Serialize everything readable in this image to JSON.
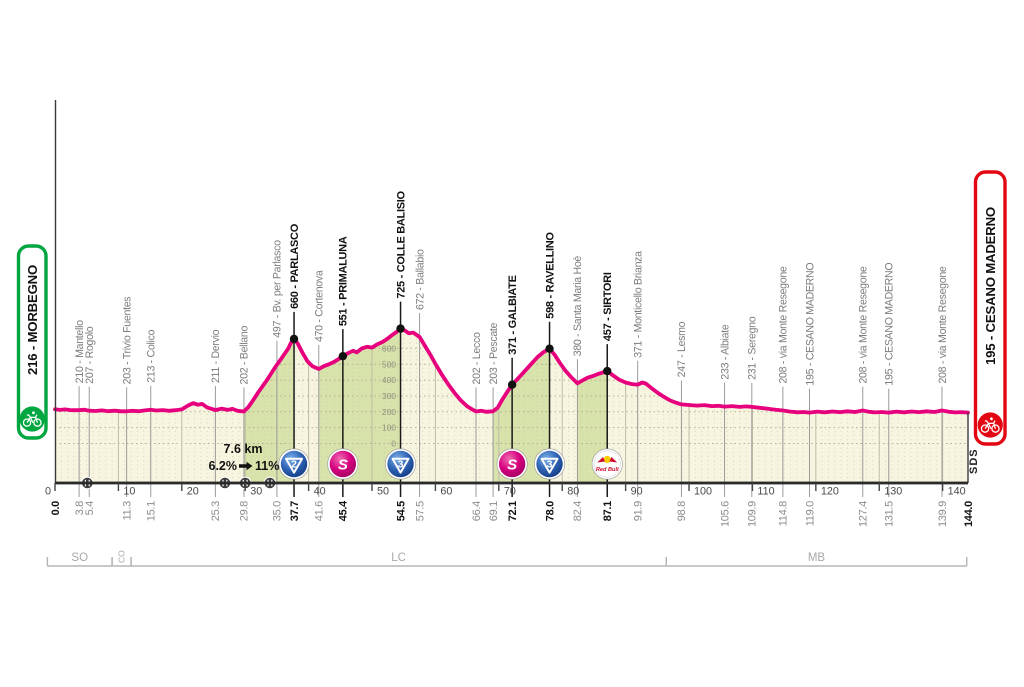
{
  "chart_data": {
    "type": "area",
    "x_unit": "km",
    "y_unit": "m",
    "x_range": [
      0,
      144
    ],
    "x_major_step": 10,
    "y_ticks": [
      0,
      100,
      200,
      300,
      400,
      500,
      600
    ],
    "total_distance_km": "144.0",
    "start": {
      "label": "216 - MORBEGNO"
    },
    "finish": {
      "label": "195 - CESANO MADERNO"
    },
    "watermark": "SDS",
    "climb_note": {
      "length": "7.6 km",
      "from_pct": "6.2%",
      "to_pct": "11%"
    },
    "provinces": [
      {
        "label": "SO",
        "from_km": -1.2,
        "to_km": 9.0,
        "rotated": false
      },
      {
        "label": "CO",
        "from_km": 9.0,
        "to_km": 12.0,
        "rotated": true
      },
      {
        "label": "LC",
        "from_km": 12.0,
        "to_km": 96.4,
        "rotated": false
      },
      {
        "label": "MB",
        "from_km": 96.4,
        "to_km": 143.8,
        "rotated": false
      }
    ],
    "tunnels_km": [
      5.1,
      26.8,
      30.0,
      33.9
    ],
    "green_segments": [
      [
        29.8,
        37.7
      ],
      [
        41.6,
        54.5
      ],
      [
        69.1,
        78.0
      ],
      [
        82.4,
        87.1
      ]
    ],
    "waypoints": [
      {
        "km": 0.0,
        "elev": 216,
        "name": "MORBEGNO",
        "emph": true,
        "icon": null,
        "role": "start"
      },
      {
        "km": 3.8,
        "elev": 210,
        "name": "Mantello",
        "emph": false,
        "icon": null
      },
      {
        "km": 5.4,
        "elev": 207,
        "name": "Rogolo",
        "emph": false,
        "icon": null
      },
      {
        "km": 11.3,
        "elev": 203,
        "name": "Trivio Fuentes",
        "emph": false,
        "icon": null
      },
      {
        "km": 15.1,
        "elev": 213,
        "name": "Colico",
        "emph": false,
        "icon": null
      },
      {
        "km": 25.3,
        "elev": 211,
        "name": "Dervio",
        "emph": false,
        "icon": null
      },
      {
        "km": 29.8,
        "elev": 202,
        "name": "Bellano",
        "emph": false,
        "icon": null
      },
      {
        "km": 35.0,
        "elev": 497,
        "name": "Bv. per Parlasco",
        "emph": false,
        "icon": null
      },
      {
        "km": 37.7,
        "elev": 660,
        "name": "PARLASCO",
        "emph": true,
        "icon": "cat2"
      },
      {
        "km": 41.6,
        "elev": 470,
        "name": "Cortenova",
        "emph": false,
        "icon": null
      },
      {
        "km": 45.4,
        "elev": 551,
        "name": "PRIMALUNA",
        "emph": true,
        "icon": "sprint"
      },
      {
        "km": 54.5,
        "elev": 725,
        "name": "COLLE BALISIO",
        "emph": true,
        "icon": "cat3",
        "elevation_scale": true
      },
      {
        "km": 57.5,
        "elev": 672,
        "name": "Ballabio",
        "emph": false,
        "icon": null
      },
      {
        "km": 66.4,
        "elev": 202,
        "name": "Lecco",
        "emph": false,
        "icon": null
      },
      {
        "km": 69.1,
        "elev": 203,
        "name": "Pescate",
        "emph": false,
        "icon": null
      },
      {
        "km": 72.1,
        "elev": 371,
        "name": "GALBIATE",
        "emph": true,
        "icon": "sprint"
      },
      {
        "km": 78.0,
        "elev": 598,
        "name": "RAVELLINO",
        "emph": true,
        "icon": "cat3"
      },
      {
        "km": 82.4,
        "elev": 380,
        "name": "Santa Maria Hoè",
        "emph": false,
        "icon": null
      },
      {
        "km": 87.1,
        "elev": 457,
        "name": "SIRTORI",
        "emph": true,
        "icon": "redbull"
      },
      {
        "km": 91.9,
        "elev": 371,
        "name": "Monticello Brianza",
        "emph": false,
        "icon": null
      },
      {
        "km": 98.8,
        "elev": 247,
        "name": "Lesmo",
        "emph": false,
        "icon": null
      },
      {
        "km": 105.6,
        "elev": 233,
        "name": "Albiate",
        "emph": false,
        "icon": null
      },
      {
        "km": 109.9,
        "elev": 231,
        "name": "Seregno",
        "emph": false,
        "icon": null
      },
      {
        "km": 114.8,
        "elev": 208,
        "name": "via Monte Resegone",
        "emph": false,
        "icon": null
      },
      {
        "km": 119.0,
        "elev": 195,
        "name": "CESANO MADERNO",
        "emph": false,
        "icon": null
      },
      {
        "km": 127.4,
        "elev": 208,
        "name": "via Monte Resegone",
        "emph": false,
        "icon": null
      },
      {
        "km": 131.5,
        "elev": 195,
        "name": "CESANO MADERNO",
        "emph": false,
        "icon": null
      },
      {
        "km": 139.9,
        "elev": 208,
        "name": "via Monte Resegone",
        "emph": false,
        "icon": null
      },
      {
        "km": 144.0,
        "elev": 195,
        "name": "CESANO MADERNO",
        "emph": true,
        "icon": null,
        "role": "finish"
      }
    ],
    "profile": [
      [
        0,
        216
      ],
      [
        0.8,
        212
      ],
      [
        1.6,
        215
      ],
      [
        2.6,
        210
      ],
      [
        3.8,
        210
      ],
      [
        4.6,
        213
      ],
      [
        5.4,
        207
      ],
      [
        6.4,
        205
      ],
      [
        7.4,
        209
      ],
      [
        8.4,
        204
      ],
      [
        9.4,
        207
      ],
      [
        10.4,
        203
      ],
      [
        11.3,
        203
      ],
      [
        12.2,
        206
      ],
      [
        13.2,
        204
      ],
      [
        14.2,
        209
      ],
      [
        15.1,
        213
      ],
      [
        16,
        208
      ],
      [
        17,
        211
      ],
      [
        18,
        206
      ],
      [
        19,
        210
      ],
      [
        20,
        215
      ],
      [
        21,
        240
      ],
      [
        21.8,
        255
      ],
      [
        22.5,
        245
      ],
      [
        23.2,
        250
      ],
      [
        24,
        228
      ],
      [
        25.3,
        211
      ],
      [
        26.3,
        220
      ],
      [
        27.2,
        212
      ],
      [
        28,
        218
      ],
      [
        28.8,
        206
      ],
      [
        29.8,
        202
      ],
      [
        30.5,
        230
      ],
      [
        31.2,
        270
      ],
      [
        32,
        320
      ],
      [
        32.8,
        365
      ],
      [
        33.6,
        410
      ],
      [
        34.3,
        455
      ],
      [
        35,
        497
      ],
      [
        35.6,
        530
      ],
      [
        36.2,
        565
      ],
      [
        36.8,
        600
      ],
      [
        37.2,
        635
      ],
      [
        37.7,
        660
      ],
      [
        38.3,
        630
      ],
      [
        39,
        575
      ],
      [
        39.8,
        520
      ],
      [
        40.6,
        488
      ],
      [
        41.6,
        470
      ],
      [
        42.4,
        488
      ],
      [
        43.2,
        500
      ],
      [
        44,
        515
      ],
      [
        44.7,
        532
      ],
      [
        45.4,
        551
      ],
      [
        46.2,
        570
      ],
      [
        47,
        585
      ],
      [
        47.6,
        575
      ],
      [
        48.4,
        600
      ],
      [
        49.2,
        610
      ],
      [
        50,
        605
      ],
      [
        50.8,
        625
      ],
      [
        51.6,
        640
      ],
      [
        52.4,
        660
      ],
      [
        53.2,
        685
      ],
      [
        53.9,
        705
      ],
      [
        54.5,
        725
      ],
      [
        55.2,
        712
      ],
      [
        55.8,
        695
      ],
      [
        56.5,
        700
      ],
      [
        57.5,
        672
      ],
      [
        58.3,
        620
      ],
      [
        59.2,
        560
      ],
      [
        60.1,
        495
      ],
      [
        61,
        435
      ],
      [
        62,
        375
      ],
      [
        63,
        320
      ],
      [
        64,
        272
      ],
      [
        65,
        235
      ],
      [
        65.8,
        215
      ],
      [
        66.4,
        202
      ],
      [
        67.2,
        206
      ],
      [
        68,
        200
      ],
      [
        69.1,
        203
      ],
      [
        69.8,
        225
      ],
      [
        70.6,
        280
      ],
      [
        71.4,
        330
      ],
      [
        72.1,
        371
      ],
      [
        72.9,
        405
      ],
      [
        73.7,
        440
      ],
      [
        74.5,
        475
      ],
      [
        75.3,
        510
      ],
      [
        76.1,
        545
      ],
      [
        77,
        575
      ],
      [
        78,
        598
      ],
      [
        78.8,
        560
      ],
      [
        79.6,
        510
      ],
      [
        80.5,
        460
      ],
      [
        81.5,
        415
      ],
      [
        82.4,
        380
      ],
      [
        83.2,
        398
      ],
      [
        84,
        415
      ],
      [
        84.8,
        425
      ],
      [
        85.6,
        438
      ],
      [
        86.4,
        448
      ],
      [
        87.1,
        457
      ],
      [
        88,
        430
      ],
      [
        89,
        402
      ],
      [
        90,
        385
      ],
      [
        91,
        375
      ],
      [
        91.9,
        371
      ],
      [
        92.6,
        385
      ],
      [
        93.2,
        378
      ],
      [
        94,
        352
      ],
      [
        95,
        322
      ],
      [
        96,
        295
      ],
      [
        97,
        272
      ],
      [
        97.9,
        258
      ],
      [
        98.8,
        247
      ],
      [
        100,
        243
      ],
      [
        101.2,
        239
      ],
      [
        102.4,
        242
      ],
      [
        103.6,
        236
      ],
      [
        104.6,
        238
      ],
      [
        105.6,
        233
      ],
      [
        106.8,
        236
      ],
      [
        108,
        231
      ],
      [
        109,
        234
      ],
      [
        109.9,
        231
      ],
      [
        111,
        226
      ],
      [
        112.3,
        220
      ],
      [
        113.5,
        214
      ],
      [
        114.8,
        208
      ],
      [
        116,
        201
      ],
      [
        117.2,
        197
      ],
      [
        118.1,
        199
      ],
      [
        119,
        195
      ],
      [
        120.2,
        201
      ],
      [
        121.4,
        197
      ],
      [
        122.6,
        202
      ],
      [
        123.8,
        198
      ],
      [
        125,
        203
      ],
      [
        126.2,
        199
      ],
      [
        127.4,
        208
      ],
      [
        128.4,
        200
      ],
      [
        129.4,
        196
      ],
      [
        130.4,
        199
      ],
      [
        131.5,
        195
      ],
      [
        132.7,
        201
      ],
      [
        133.9,
        197
      ],
      [
        135.1,
        202
      ],
      [
        136.3,
        198
      ],
      [
        137.5,
        203
      ],
      [
        138.7,
        199
      ],
      [
        139.9,
        208
      ],
      [
        141,
        200
      ],
      [
        142,
        196
      ],
      [
        143,
        198
      ],
      [
        144,
        195
      ]
    ]
  },
  "icons": {
    "cat2_label": "2",
    "cat3_label": "3",
    "sprint_label": "S",
    "redbull_label": "Red Bull",
    "start_icon": "cyclist-icon",
    "finish_icon": "cyclist-icon",
    "tunnel_icon": "tunnel-icon"
  },
  "colors": {
    "profile_pink": "#e6007d",
    "area_cream": "#f7f4df",
    "climb_green": "#d8e2ab",
    "start_green": "#00a63f",
    "finish_red": "#e30613",
    "climb_blue_dark": "#143c85",
    "climb_blue_light": "#7db1e8",
    "sprint_magenta": "#d6007f",
    "redbull_red": "#cf0a2c",
    "redbull_yellow": "#ffcc00",
    "axis_dark": "#2b2b2b",
    "grid_tone": "#bcb9a0",
    "label_gray": "#7d7d7d",
    "label_dark": "#111111",
    "province_gray": "#a8a8a8"
  }
}
